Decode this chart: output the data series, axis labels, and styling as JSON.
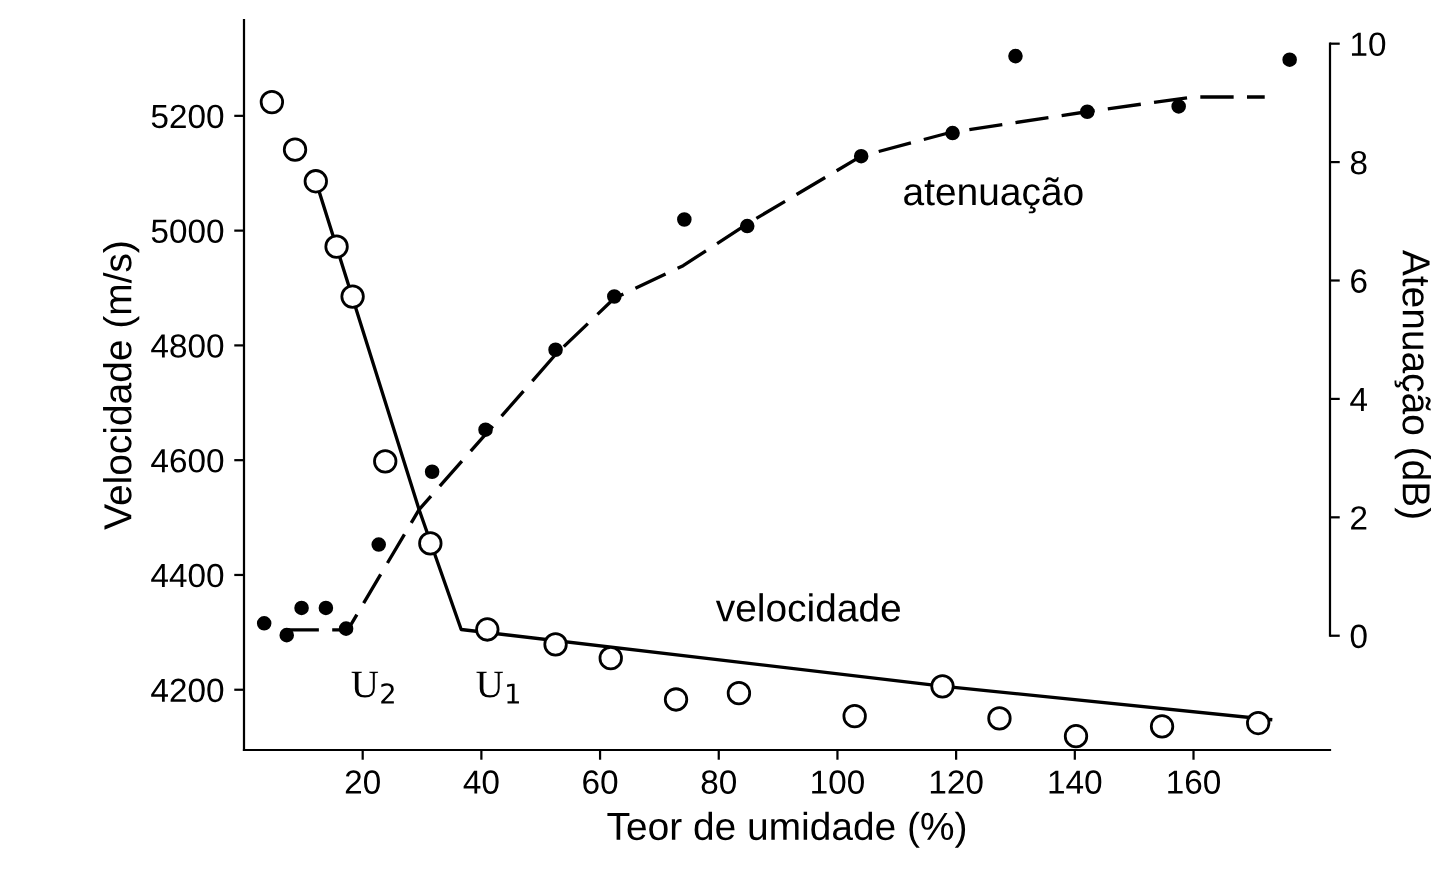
{
  "chart_data": {
    "type": "scatter",
    "xlabel": "Teor de umidade (%)",
    "ylabel": "Velocidade (m/s)",
    "y2label": "Atenuação (dB)",
    "xlim": [
      0,
      183
    ],
    "xticks": [
      20,
      40,
      60,
      80,
      100,
      120,
      140,
      160
    ],
    "ylim": [
      4095,
      5367
    ],
    "yticks": [
      4200,
      4400,
      4600,
      4800,
      5000,
      5200
    ],
    "y2lim": [
      -1.93,
      10.4
    ],
    "y2ticks": [
      0,
      2,
      4,
      6,
      8,
      10
    ],
    "grid": false,
    "legend": false,
    "series": [
      {
        "name": "velocidade",
        "marker": "circle",
        "color": "#ffffff",
        "x": [
          4.7,
          8.6,
          12.1,
          15.6,
          18.3,
          23.8,
          31.4,
          41,
          52.5,
          61.8,
          72.8,
          83.4,
          102.9,
          117.7,
          127.3,
          140.2,
          154.7,
          170.9
        ],
        "values": [
          5224,
          5141,
          5086,
          4972,
          4885,
          4598,
          4455,
          4305,
          4279,
          4255,
          4183,
          4194,
          4154,
          4206,
          4150,
          4119,
          4136,
          4142
        ]
      },
      {
        "type": "line",
        "line_style": "solid",
        "color": "#000000",
        "x": [
          12,
          29.5,
          36.6,
          118,
          173
        ],
        "values": [
          5090,
          4514,
          4305,
          4206,
          4148
        ]
      },
      {
        "name": "atenuação",
        "marker": "circle",
        "axis": "y2",
        "color": "#000000",
        "x": [
          3.4,
          7.2,
          9.7,
          13.8,
          17.2,
          22.7,
          31.7,
          40.7,
          52.5,
          62.4,
          74.2,
          84.8,
          104,
          119.4,
          130,
          142.1,
          157.5,
          176.2
        ],
        "values": [
          0.21,
          0.01,
          0.47,
          0.47,
          0.12,
          1.54,
          2.77,
          3.48,
          4.83,
          5.73,
          7.03,
          6.92,
          8.1,
          8.49,
          9.79,
          8.85,
          8.94,
          9.73
        ]
      },
      {
        "type": "line",
        "line_style": "dashed",
        "axis": "y2",
        "color": "#000000",
        "x": [
          7,
          17.5,
          29.5,
          40.7,
          52.5,
          62.4,
          74,
          85,
          104,
          119,
          142,
          160,
          172
        ],
        "values": [
          0.1,
          0.1,
          2.13,
          3.4,
          4.75,
          5.7,
          6.25,
          6.97,
          8.1,
          8.5,
          8.85,
          9.1,
          9.1
        ]
      }
    ],
    "annotations": [
      "U$_{2}$",
      "U$_{1}$"
    ]
  }
}
